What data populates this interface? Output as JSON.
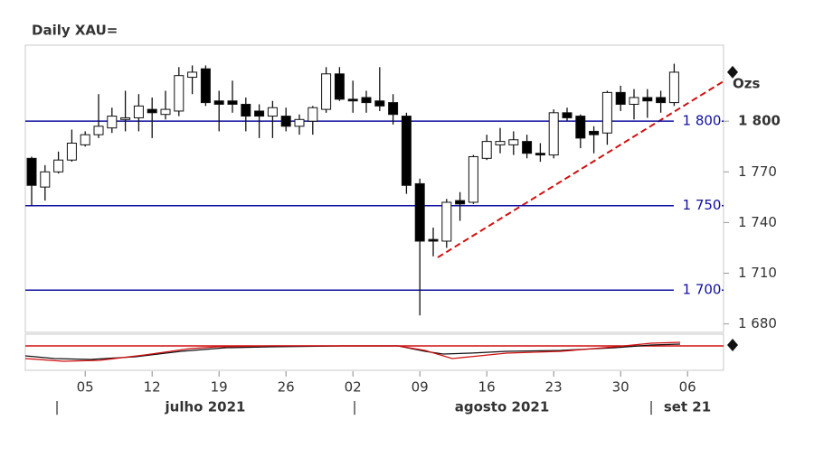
{
  "chart_data": {
    "type": "candlestick",
    "title": "Daily XAU=",
    "unit_label": "Ozs",
    "categories": [
      null,
      null,
      null,
      null,
      "05",
      null,
      null,
      null,
      null,
      "12",
      null,
      null,
      null,
      null,
      "19",
      null,
      null,
      null,
      null,
      "26",
      null,
      null,
      null,
      null,
      "02",
      null,
      null,
      null,
      null,
      "09",
      null,
      null,
      null,
      null,
      "16",
      null,
      null,
      null,
      null,
      "23",
      null,
      null,
      null,
      null,
      "30",
      null,
      null,
      null,
      null,
      "06"
    ],
    "open": [
      1778,
      1761,
      1770,
      1777,
      1786,
      1792,
      1796,
      1801,
      1802,
      1807,
      1804,
      1806,
      1826,
      1831,
      1812,
      1812,
      1810,
      1806,
      1803,
      1803,
      1797,
      1800,
      1807,
      1828,
      1813,
      1814,
      1812,
      1811,
      1803,
      1763,
      1730,
      1729,
      1753,
      1752,
      1778,
      1786,
      1786,
      1788,
      1781,
      1780,
      1805,
      1803,
      1794,
      1793,
      1817,
      1810,
      1814,
      1814,
      1811,
      null
    ],
    "high": [
      1779,
      1774,
      1782,
      1795,
      1794,
      1816,
      1808,
      1818,
      1816,
      1814,
      1818,
      1832,
      1833,
      1833,
      1818,
      1824,
      1814,
      1810,
      1812,
      1808,
      1804,
      1809,
      1832,
      1832,
      1824,
      1818,
      1832,
      1816,
      1805,
      1766,
      1737,
      1754,
      1758,
      1780,
      1792,
      1796,
      1794,
      1792,
      1787,
      1807,
      1808,
      1804,
      1797,
      1818,
      1821,
      1819,
      1819,
      1818,
      1834,
      null
    ],
    "low": [
      1750,
      1753,
      1769,
      1776,
      1785,
      1790,
      1793,
      1794,
      1794,
      1790,
      1801,
      1803,
      1816,
      1809,
      1794,
      1805,
      1794,
      1790,
      1790,
      1794,
      1792,
      1792,
      1805,
      1812,
      1805,
      1805,
      1806,
      1798,
      1757,
      1685,
      1720,
      1725,
      1741,
      1751,
      1777,
      1781,
      1780,
      1778,
      1776,
      1778,
      1800,
      1784,
      1781,
      1786,
      1806,
      1801,
      1802,
      1805,
      1809,
      null
    ],
    "close": [
      1762,
      1770,
      1777,
      1787,
      1792,
      1797,
      1803,
      1802,
      1809,
      1805,
      1807,
      1827,
      1829,
      1811,
      1810,
      1810,
      1803,
      1803,
      1808,
      1797,
      1801,
      1808,
      1828,
      1813,
      1812,
      1811,
      1809,
      1804,
      1762,
      1729,
      1729,
      1752,
      1751,
      1779,
      1788,
      1788,
      1789,
      1781,
      1780,
      1805,
      1802,
      1790,
      1792,
      1817,
      1810,
      1814,
      1812,
      1811,
      1829,
      null
    ],
    "up_color": "#ffffff",
    "down_color": "#000000",
    "ylim": [
      1675,
      1845
    ],
    "yticks": [
      {
        "value": 1680,
        "label": "1 680"
      },
      {
        "value": 1710,
        "label": "1 710"
      },
      {
        "value": 1740,
        "label": "1 740"
      },
      {
        "value": 1770,
        "label": "1 770"
      },
      {
        "value": 1800,
        "label": "1 800"
      }
    ],
    "levels": [
      {
        "value": 1800,
        "label": "1 800"
      },
      {
        "value": 1750,
        "label": "1 750"
      },
      {
        "value": 1700,
        "label": "1 700"
      }
    ],
    "level_color": "#1010a0",
    "period_labels": [
      "julho 2021",
      "agosto 2021",
      "set 21"
    ]
  }
}
